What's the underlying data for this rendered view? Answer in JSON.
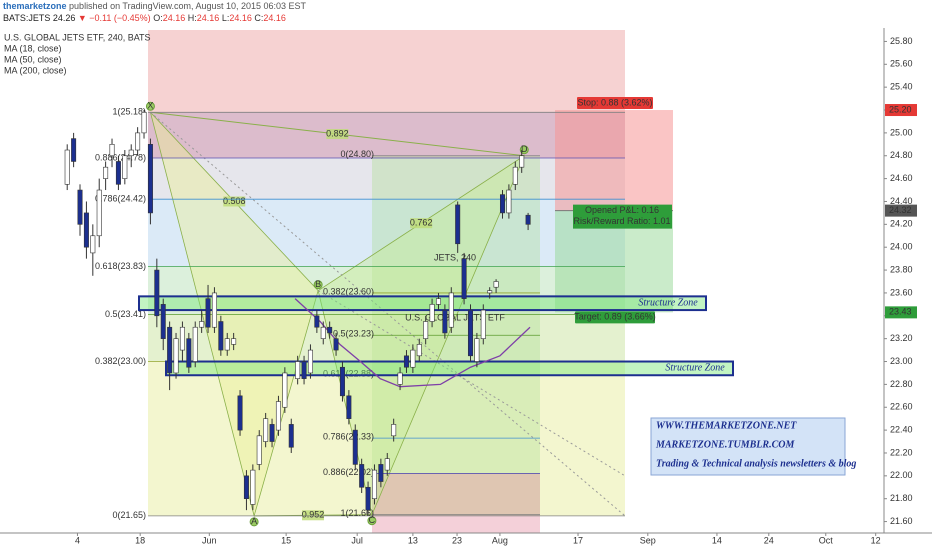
{
  "header": {
    "user": "themarketzone",
    "published": "published on TradingView.com, August 10, 2015 06:03 EST",
    "symbol": "BATS:JETS 24.26",
    "change": "▼ −0.11 (−0.45%)",
    "ohlc": [
      {
        "key": "O:",
        "value": "24.16"
      },
      {
        "key": "H:",
        "value": "24.16"
      },
      {
        "key": "L:",
        "value": "24.16"
      },
      {
        "key": "C:",
        "value": "24.16"
      }
    ]
  },
  "chart_data": {
    "type": "candlestick",
    "title": "U.S. GLOBAL JETS ETF, 240, BATS",
    "indicators": [
      "MA (18, close)",
      "MA (50, close)",
      "MA (200, close)"
    ],
    "watermark": {
      "symbol": "JETS, 240",
      "name": "U.S. GLOBAL JETS ETF"
    },
    "up_color": "#ffffff",
    "down_color": "#1c2f8f",
    "outline": "#333333",
    "x": [
      0,
      1,
      2,
      3,
      4,
      5,
      6,
      7,
      8,
      9,
      10,
      11,
      12,
      13,
      14,
      15,
      16,
      17,
      18,
      19,
      20,
      21,
      22,
      23,
      24,
      25,
      26,
      27,
      28,
      29,
      30,
      31,
      32,
      33,
      34,
      35,
      36,
      37,
      38,
      39,
      40,
      41,
      42,
      43,
      44,
      45,
      46,
      47,
      48,
      49,
      50,
      51,
      52,
      53,
      54,
      55,
      56,
      57,
      58,
      59,
      60,
      61,
      62,
      63,
      64,
      65,
      66,
      67,
      68,
      69,
      70,
      71,
      72
    ],
    "open": [
      24.55,
      24.95,
      24.5,
      24.3,
      23.95,
      24.1,
      24.6,
      24.8,
      24.75,
      24.6,
      24.8,
      24.85,
      25.0,
      24.9,
      23.8,
      23.5,
      23.3,
      22.9,
      23.1,
      23.2,
      23.0,
      23.3,
      23.55,
      23.3,
      23.35,
      23.1,
      23.15,
      22.7,
      22.0,
      21.75,
      22.1,
      22.3,
      22.45,
      22.4,
      22.6,
      22.45,
      22.85,
      23.0,
      22.9,
      23.4,
      23.2,
      23.3,
      23.2,
      22.95,
      22.7,
      22.4,
      22.1,
      21.9,
      21.8,
      22.1,
      22.05,
      22.35,
      22.8,
      23.05,
      22.95,
      23.05,
      23.2,
      23.35,
      23.5,
      23.45,
      23.3,
      24.37,
      23.9,
      23.45,
      23.0,
      23.2,
      23.6,
      23.65,
      24.46,
      24.3,
      24.55,
      24.7,
      24.28
    ],
    "high": [
      24.9,
      25.0,
      24.55,
      24.4,
      24.2,
      24.6,
      24.75,
      24.95,
      24.8,
      24.85,
      24.9,
      25.05,
      25.2,
      24.95,
      23.9,
      23.55,
      23.35,
      23.25,
      23.35,
      23.25,
      23.35,
      23.45,
      23.67,
      23.65,
      23.4,
      23.25,
      23.25,
      22.75,
      22.05,
      22.1,
      22.4,
      22.55,
      22.5,
      22.7,
      22.95,
      22.5,
      23.05,
      23.05,
      23.15,
      23.45,
      23.35,
      23.35,
      23.25,
      23.0,
      22.75,
      22.45,
      22.15,
      21.95,
      22.1,
      22.15,
      22.2,
      22.5,
      22.95,
      23.1,
      23.15,
      23.2,
      23.4,
      23.55,
      23.6,
      23.5,
      23.65,
      24.4,
      23.95,
      23.5,
      23.25,
      23.5,
      23.65,
      23.72,
      24.5,
      24.55,
      24.75,
      24.85,
      24.3
    ],
    "low": [
      24.5,
      24.7,
      24.1,
      23.9,
      23.75,
      24.0,
      24.5,
      24.7,
      24.5,
      24.55,
      24.7,
      24.8,
      24.95,
      24.2,
      23.3,
      23.1,
      22.75,
      22.85,
      23.0,
      22.9,
      22.95,
      23.25,
      23.25,
      23.25,
      23.05,
      23.05,
      23.1,
      22.35,
      21.7,
      21.7,
      22.05,
      22.25,
      22.25,
      22.35,
      22.55,
      22.2,
      22.8,
      22.8,
      22.85,
      23.25,
      23.15,
      23.2,
      23.05,
      22.65,
      22.45,
      22.05,
      21.85,
      21.66,
      21.75,
      21.9,
      22.0,
      22.3,
      22.75,
      22.9,
      22.9,
      23.0,
      23.15,
      23.3,
      23.45,
      23.2,
      23.25,
      23.95,
      23.5,
      23.0,
      22.95,
      23.15,
      23.55,
      23.6,
      24.25,
      24.25,
      24.5,
      24.65,
      24.15
    ],
    "close": [
      24.85,
      24.75,
      24.2,
      24.0,
      24.1,
      24.5,
      24.7,
      24.9,
      24.55,
      24.8,
      24.85,
      25.0,
      25.18,
      24.3,
      23.4,
      23.2,
      22.9,
      23.2,
      23.3,
      22.95,
      23.3,
      23.35,
      23.3,
      23.6,
      23.1,
      23.2,
      23.2,
      22.4,
      21.8,
      22.05,
      22.35,
      22.5,
      22.3,
      22.65,
      22.9,
      22.25,
      23.0,
      22.85,
      23.1,
      23.3,
      23.3,
      23.25,
      23.1,
      22.7,
      22.5,
      22.1,
      21.9,
      21.7,
      22.05,
      21.95,
      22.15,
      22.45,
      22.9,
      22.95,
      23.1,
      23.15,
      23.35,
      23.5,
      23.55,
      23.25,
      23.6,
      24.03,
      23.55,
      23.05,
      23.2,
      23.45,
      23.62,
      23.7,
      24.3,
      24.5,
      24.7,
      24.8,
      24.2
    ],
    "ma_line": {
      "color": "#7e3fa8",
      "x": [
        35.6,
        39.5,
        42.6,
        45.8,
        48.9,
        52,
        58.3,
        63,
        67.6,
        72.3
      ],
      "values": [
        23.55,
        23.35,
        23.15,
        23.0,
        22.85,
        22.78,
        22.8,
        22.95,
        23.05,
        23.3
      ]
    },
    "xlim": [
      -10.5,
      127.6
    ],
    "xticks": [
      {
        "value": 1.6,
        "label": "4"
      },
      {
        "value": 11.4,
        "label": "18"
      },
      {
        "value": 22.2,
        "label": "Jun"
      },
      {
        "value": 34.2,
        "label": "15"
      },
      {
        "value": 45.3,
        "label": "Jul"
      },
      {
        "value": 54.0,
        "label": "13"
      },
      {
        "value": 60.9,
        "label": "23"
      },
      {
        "value": 67.6,
        "label": "Aug"
      },
      {
        "value": 79.8,
        "label": "17"
      },
      {
        "value": 90.7,
        "label": "Sep"
      },
      {
        "value": 101.5,
        "label": "14"
      },
      {
        "value": 109.6,
        "label": "24"
      },
      {
        "value": 118.5,
        "label": "Oct"
      },
      {
        "value": 126.3,
        "label": "12"
      }
    ],
    "ylim": [
      21.5,
      25.9
    ],
    "yticks": [
      {
        "value": 21.6,
        "label": "21.60"
      },
      {
        "value": 21.8,
        "label": "21.80"
      },
      {
        "value": 22.0,
        "label": "22.00"
      },
      {
        "value": 22.2,
        "label": "22.20"
      },
      {
        "value": 22.4,
        "label": "22.40"
      },
      {
        "value": 22.6,
        "label": "22.60"
      },
      {
        "value": 22.8,
        "label": "22.80"
      },
      {
        "value": 23.0,
        "label": "23.00"
      },
      {
        "value": 23.2,
        "label": "23.20"
      },
      {
        "value": 23.4,
        "label": "23.40"
      },
      {
        "value": 23.6,
        "label": "23.60"
      },
      {
        "value": 23.8,
        "label": "23.80"
      },
      {
        "value": 24.0,
        "label": "24.00"
      },
      {
        "value": 24.2,
        "label": "24.20"
      },
      {
        "value": 24.4,
        "label": "24.40"
      },
      {
        "value": 24.6,
        "label": "24.60"
      },
      {
        "value": 24.8,
        "label": "24.80"
      },
      {
        "value": 25.0,
        "label": "25.00"
      },
      {
        "value": 25.2,
        "label": "25.20"
      },
      {
        "value": 25.4,
        "label": "25.40"
      },
      {
        "value": 25.6,
        "label": "25.60"
      },
      {
        "value": 25.8,
        "label": "25.80"
      }
    ],
    "price_badges": [
      {
        "value": 25.2,
        "label": "25.20",
        "color": "#e53935"
      },
      {
        "value": 24.32,
        "label": "24.32",
        "color": "#555555"
      },
      {
        "value": 23.43,
        "label": "23.43",
        "color": "#2e9d3a"
      }
    ],
    "fib_xa": {
      "levels": [
        {
          "label": "1(25.18)",
          "price": 25.18,
          "color": "#808080"
        },
        {
          "label": "0.886(24.78)",
          "price": 24.78,
          "color": "#5a4fb0"
        },
        {
          "label": "0.786(24.42)",
          "price": 24.42,
          "color": "#3e8ed0"
        },
        {
          "label": "0.618(23.83)",
          "price": 23.83,
          "color": "#3fa34d"
        },
        {
          "label": "0.5(23.41)",
          "price": 23.41,
          "color": "#5b9a2d"
        },
        {
          "label": "0.382(23.00)",
          "price": 23.0,
          "color": "#93a52e"
        },
        {
          "label": "0(21.65)",
          "price": 21.65,
          "color": "#808080"
        }
      ],
      "band_colors": [
        "#dcbccc",
        "#e6e6ec",
        "#dbeaf7",
        "#dcf0dc",
        "#e4f1cf",
        "#f3f6cf"
      ]
    },
    "fib_cd": {
      "levels": [
        {
          "label": "0(24.80)",
          "price": 24.8,
          "color": "#808080"
        },
        {
          "label": "0.382(23.60)",
          "price": 23.6,
          "color": "#93a52e"
        },
        {
          "label": "0.5(23.23)",
          "price": 23.23,
          "color": "#5b9a2d"
        },
        {
          "label": "0.618(22.88)",
          "price": 22.88,
          "color": "#3fa34d"
        },
        {
          "label": "0.786(22.33)",
          "price": 22.33,
          "color": "#3e8ed0"
        },
        {
          "label": "0.886(22.02)",
          "price": 22.02,
          "color": "#5a4fb0"
        },
        {
          "label": "1(21.66)",
          "price": 21.66,
          "color": "#808080"
        }
      ]
    },
    "pattern": {
      "points": [
        {
          "label": "X",
          "x": 13,
          "price": 25.18
        },
        {
          "label": "A",
          "x": 29.2,
          "price": 21.65
        },
        {
          "label": "B",
          "x": 39.2,
          "price": 23.62
        },
        {
          "label": "C",
          "x": 47.6,
          "price": 21.66
        },
        {
          "label": "D",
          "x": 71.4,
          "price": 24.8
        }
      ],
      "ratios": [
        {
          "label": "0.892",
          "legs": [
            0,
            4
          ]
        },
        {
          "label": "0.508",
          "legs": [
            0,
            2
          ]
        },
        {
          "label": "0.762",
          "legs": [
            2,
            4
          ]
        },
        {
          "label": "0.952",
          "legs": [
            1,
            3
          ]
        }
      ]
    },
    "structure_zones": [
      {
        "label": "Structure Zone",
        "top": 23.57,
        "bottom": 23.45
      },
      {
        "label": "Structure Zone",
        "top": 23.0,
        "bottom": 22.88
      }
    ],
    "position": {
      "stop": 25.2,
      "entry": 24.32,
      "target": 23.43,
      "stop_label": "Stop: 0.88 (3.62%)",
      "pnl": "Opened P&L: 0.16",
      "rr": "Risk/Reward Ratio: 1.01",
      "target_label": "Target: 0.89 (3.66%)"
    },
    "info_box": [
      "WWW.THEMARKETZONE.NET",
      "MARKETZONE.TUMBLR.COM",
      "Trading & Technical analysis newsletters & blog"
    ]
  }
}
